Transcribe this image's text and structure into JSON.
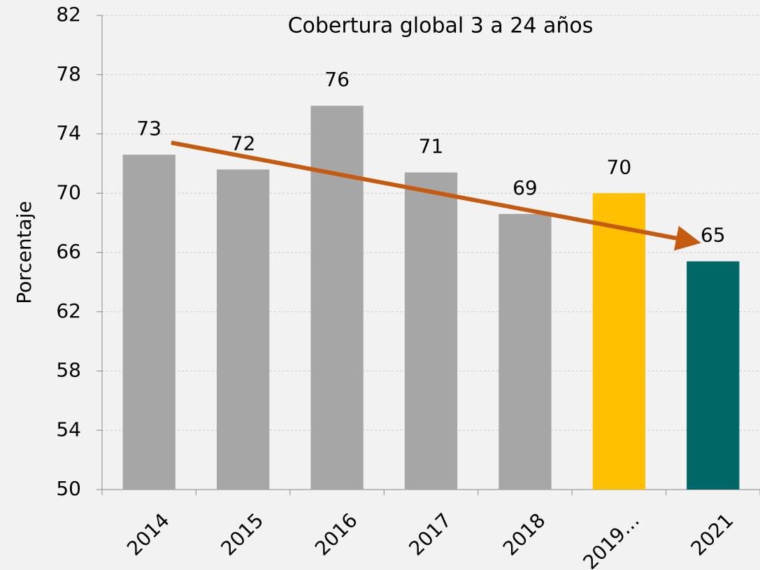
{
  "chart_data": {
    "type": "bar",
    "title": "Cobertura global 3 a 24 años",
    "y_label": "Porcentaje",
    "categories": [
      "2014",
      "2015",
      "2016",
      "2017",
      "2018",
      "2019…",
      "2021"
    ],
    "values": [
      72.6,
      71.6,
      75.9,
      71.4,
      68.6,
      70.0,
      65.4
    ],
    "value_labels": [
      "73",
      "72",
      "76",
      "71",
      "69",
      "70",
      "65"
    ],
    "colors": [
      "#a6a6a6",
      "#a6a6a6",
      "#a6a6a6",
      "#a6a6a6",
      "#a6a6a6",
      "#ffc000",
      "#006666"
    ],
    "ylim": [
      50,
      82
    ],
    "yticks": [
      50,
      54,
      58,
      62,
      66,
      70,
      74,
      78,
      82
    ],
    "grid": true
  }
}
